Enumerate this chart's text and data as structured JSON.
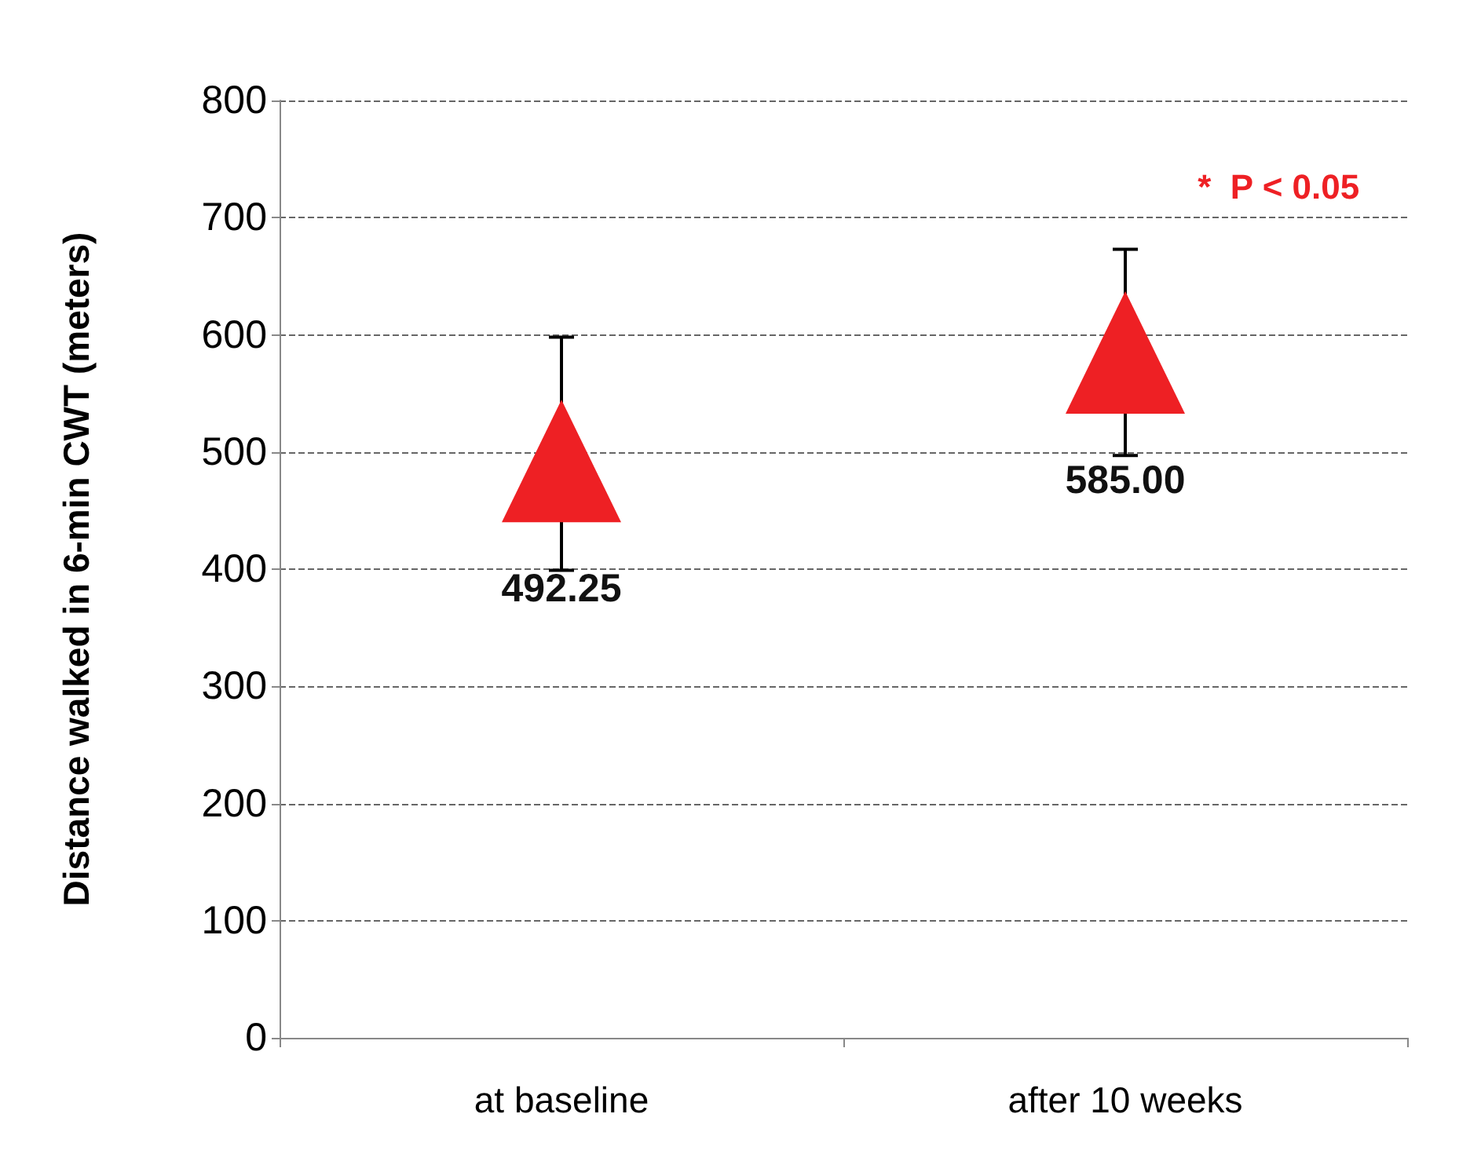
{
  "chart_data": {
    "type": "scatter",
    "ylabel": "Distance walked in 6-min CWT (meters)",
    "categories": [
      "at baseline",
      "after 10 weeks"
    ],
    "series": [
      {
        "color": "#ee2024",
        "values": [
          492.25,
          585.0
        ],
        "errors": [
          [
            399,
            598
          ],
          [
            497,
            673
          ]
        ],
        "value_labels": [
          "492.25",
          "585.00"
        ]
      }
    ],
    "ylim": [
      0,
      800
    ],
    "yticks": [
      0,
      100,
      200,
      300,
      400,
      500,
      600,
      700,
      800
    ],
    "grid": "y",
    "marker": "triangle",
    "annotations": [
      "*  P < 0.05"
    ]
  }
}
